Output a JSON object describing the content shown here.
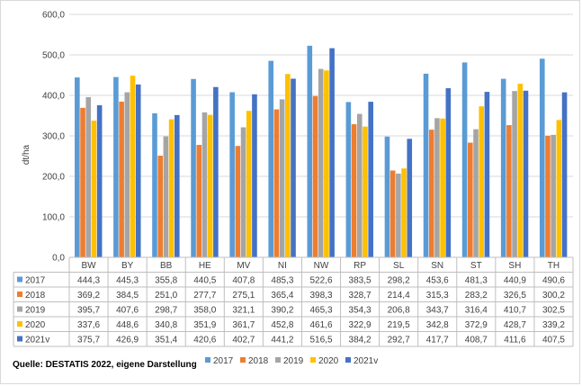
{
  "chart_data": {
    "type": "bar",
    "title": "",
    "xlabel": "",
    "ylabel": "dt/ha",
    "ylim": [
      0,
      600
    ],
    "y_ticks": [
      0,
      100,
      200,
      300,
      400,
      500,
      600
    ],
    "y_tick_labels": [
      "0,0",
      "100,0",
      "200,0",
      "300,0",
      "400,0",
      "500,0",
      "600,0"
    ],
    "grid": true,
    "legend_position": "bottom-right",
    "categories": [
      "BW",
      "BY",
      "BB",
      "HE",
      "MV",
      "NI",
      "NW",
      "RP",
      "SL",
      "SN",
      "ST",
      "SH",
      "TH"
    ],
    "series": [
      {
        "name": "2017",
        "color": "#5b9bd5",
        "values": [
          444.3,
          445.3,
          355.8,
          440.5,
          407.8,
          485.3,
          522.6,
          383.5,
          298.2,
          453.6,
          481.3,
          440.9,
          490.6
        ],
        "labels": [
          "444,3",
          "445,3",
          "355,8",
          "440,5",
          "407,8",
          "485,3",
          "522,6",
          "383,5",
          "298,2",
          "453,6",
          "481,3",
          "440,9",
          "490,6"
        ]
      },
      {
        "name": "2018",
        "color": "#ed7d31",
        "values": [
          369.2,
          384.5,
          251.0,
          277.7,
          275.1,
          365.4,
          398.3,
          328.7,
          214.4,
          315.3,
          283.2,
          326.5,
          300.2
        ],
        "labels": [
          "369,2",
          "384,5",
          "251,0",
          "277,7",
          "275,1",
          "365,4",
          "398,3",
          "328,7",
          "214,4",
          "315,3",
          "283,2",
          "326,5",
          "300,2"
        ]
      },
      {
        "name": "2019",
        "color": "#a5a5a5",
        "values": [
          395.7,
          407.6,
          298.7,
          358.0,
          321.1,
          390.2,
          465.3,
          354.3,
          206.8,
          343.7,
          316.4,
          410.7,
          302.5
        ],
        "labels": [
          "395,7",
          "407,6",
          "298,7",
          "358,0",
          "321,1",
          "390,2",
          "465,3",
          "354,3",
          "206,8",
          "343,7",
          "316,4",
          "410,7",
          "302,5"
        ]
      },
      {
        "name": "2020",
        "color": "#ffc000",
        "values": [
          337.6,
          448.6,
          340.8,
          351.9,
          361.7,
          452.8,
          461.6,
          322.9,
          219.5,
          342.8,
          372.9,
          428.7,
          339.2
        ],
        "labels": [
          "337,6",
          "448,6",
          "340,8",
          "351,9",
          "361,7",
          "452,8",
          "461,6",
          "322,9",
          "219,5",
          "342,8",
          "372,9",
          "428,7",
          "339,2"
        ]
      },
      {
        "name": "2021v",
        "color": "#4472c4",
        "values": [
          375.7,
          426.9,
          351.4,
          420.6,
          402.7,
          441.2,
          516.5,
          384.2,
          292.7,
          417.7,
          408.7,
          411.6,
          407.5
        ],
        "labels": [
          "375,7",
          "426,9",
          "351,4",
          "420,6",
          "402,7",
          "441,2",
          "516,5",
          "384,2",
          "292,7",
          "417,7",
          "408,7",
          "411,6",
          "407,5"
        ]
      }
    ]
  },
  "source_note": "Quelle: DESTATIS 2022, eigene Darstellung"
}
